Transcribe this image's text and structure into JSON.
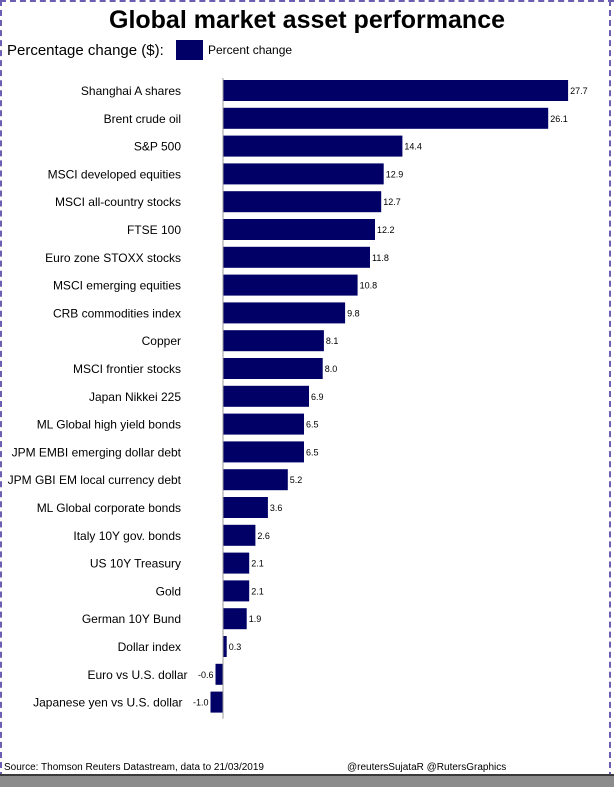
{
  "title": "Global market asset performance",
  "subtitle": "Percentage change ($):",
  "legend": {
    "label": "Percent change"
  },
  "footer": {
    "source": "Source: Thomson Reuters Datastream, data to 21/03/2019",
    "credit": "@reutersSujataR @RutersGraphics"
  },
  "colors": {
    "bar": "#000066",
    "axis": "#999999",
    "border": "#6a5fb0"
  },
  "chart_data": {
    "type": "bar",
    "orientation": "horizontal",
    "title": "Global market asset performance",
    "categories": [
      "Shanghai A shares",
      "Brent crude oil",
      "S&P 500",
      "MSCI developed equities",
      "MSCI all-country stocks",
      "FTSE 100",
      "Euro zone STOXX stocks",
      "MSCI emerging equities",
      "CRB commodities index",
      "Copper",
      "MSCI frontier stocks",
      "Japan Nikkei 225",
      "ML Global high yield bonds",
      "JPM EMBI emerging dollar debt",
      "JPM GBI EM local currency debt",
      "ML Global corporate bonds",
      "Italy 10Y gov. bonds",
      "US 10Y Treasury",
      "Gold",
      "German 10Y Bund",
      "Dollar index",
      "Euro vs U.S. dollar",
      "Japanese yen vs U.S. dollar"
    ],
    "values": [
      27.7,
      26.1,
      14.4,
      12.9,
      12.7,
      12.2,
      11.8,
      10.8,
      9.8,
      8.1,
      8.0,
      6.9,
      6.5,
      6.5,
      5.2,
      3.6,
      2.6,
      2.1,
      2.1,
      1.9,
      0.3,
      -0.6,
      -1.0
    ],
    "value_labels": [
      "27.7",
      "26.1",
      "14.4",
      "12.9",
      "12.7",
      "12.2",
      "11.8",
      "10.8",
      "9.8",
      "8.1",
      "8.0",
      "6.9",
      "6.5",
      "6.5",
      "5.2",
      "3.6",
      "2.6",
      "2.1",
      "2.1",
      "1.9",
      "0.3",
      "-0.6",
      "-1.0"
    ],
    "series": [
      {
        "name": "Percent change"
      }
    ],
    "xlim": [
      -1.0,
      27.7
    ],
    "grid": false,
    "legend_position": "top"
  }
}
